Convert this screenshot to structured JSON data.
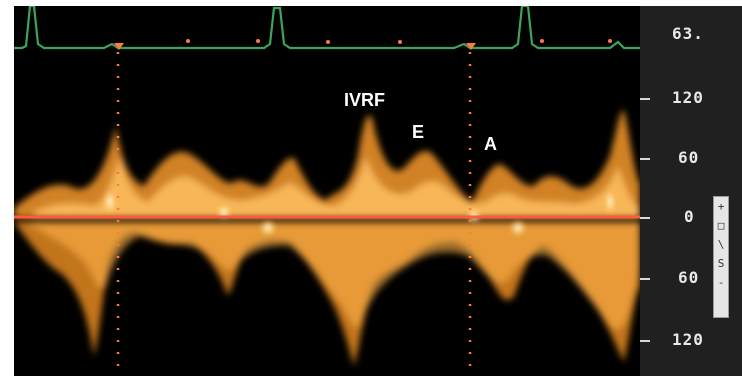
{
  "annotations": {
    "ivrf": "IVRF",
    "e": "E",
    "a": "A"
  },
  "scale": {
    "ecg_value": "63.",
    "ticks": [
      "120",
      "60",
      "0",
      "60",
      "120"
    ]
  },
  "side_controls": [
    "+",
    "□",
    "\\",
    "S",
    "-"
  ],
  "colors": {
    "ecg_trace": "#3ea35c",
    "baseline": "#ff5a3c",
    "flow": "#f0a030",
    "flow_core": "#ffd890",
    "marker": "#ff7a3a"
  }
}
